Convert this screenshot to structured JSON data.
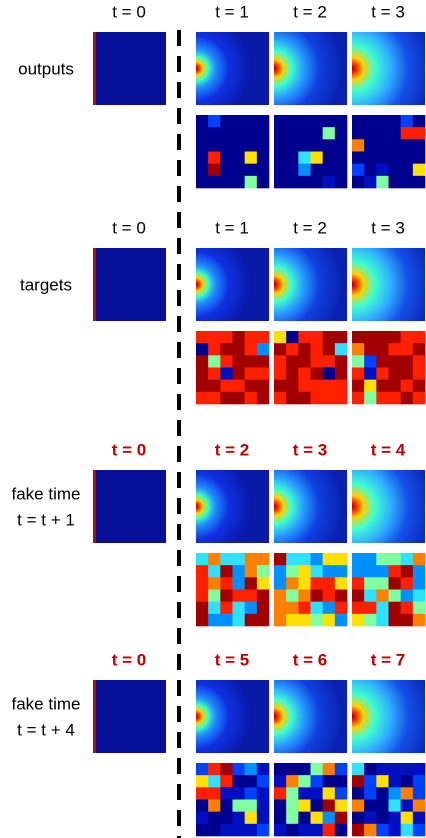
{
  "sections": [
    {
      "label_lines": [
        "outputs"
      ],
      "times": [
        "t = 0",
        "t = 1",
        "t = 2",
        "t = 3"
      ],
      "time_color": "#000000"
    },
    {
      "label_lines": [
        "targets"
      ],
      "times": [
        "t = 0",
        "t = 1",
        "t = 2",
        "t = 3"
      ],
      "time_color": "#000000"
    },
    {
      "label_lines": [
        "fake time",
        "t = t + 1"
      ],
      "times": [
        "t = 0",
        "t = 2",
        "t = 3",
        "t = 4"
      ],
      "time_color": "#c00000"
    },
    {
      "label_lines": [
        "fake time",
        "t = t + 4"
      ],
      "times": [
        "t = 0",
        "t = 5",
        "t = 6",
        "t = 7"
      ],
      "time_color": "#c00000"
    }
  ]
}
